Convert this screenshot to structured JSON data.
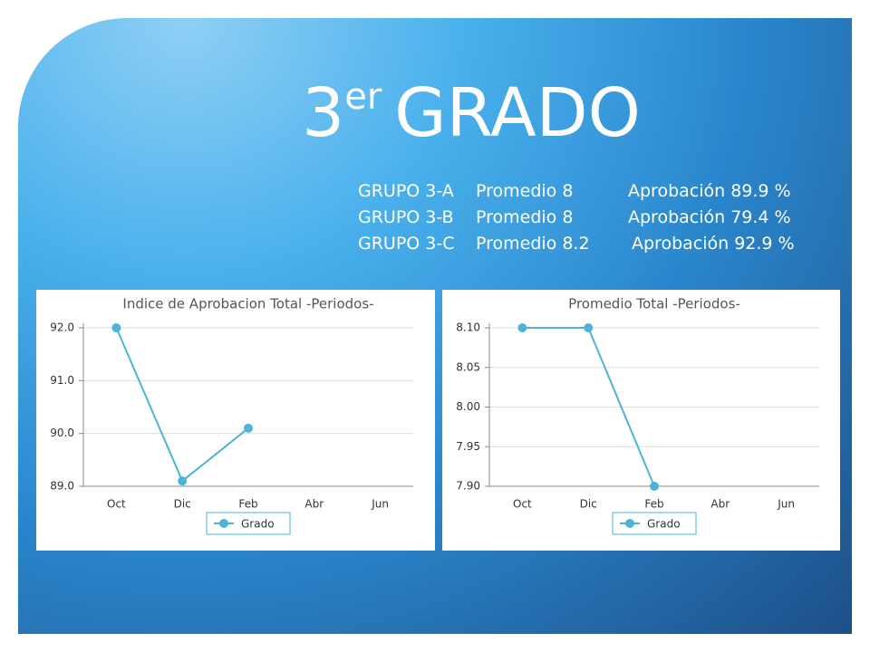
{
  "slide": {
    "title": {
      "number": "3",
      "suffix": "er",
      "text": "GRADO"
    },
    "groups": [
      {
        "group": "GRUPO 3-A",
        "average": "Promedio 8",
        "approval": "Aprobación 89.9 %"
      },
      {
        "group": "GRUPO 3-B",
        "average": "Promedio 8",
        "approval": "Aprobación 79.4 %"
      },
      {
        "group": "GRUPO 3-C",
        "average": "Promedio 8.2",
        "approval": "Aprobación 92.9 %"
      }
    ]
  },
  "chart_data": [
    {
      "type": "line",
      "title": "Indice de Aprobacion Total -Periodos-",
      "categories": [
        "Oct",
        "Dic",
        "Feb",
        "Abr",
        "Jun"
      ],
      "series": [
        {
          "name": "Grado",
          "color": "#4db3d9",
          "values": [
            92.0,
            89.1,
            90.1,
            null,
            null
          ]
        }
      ],
      "ylim": [
        89,
        92
      ],
      "yticks": [
        {
          "value": 89,
          "label": "89.0"
        },
        {
          "value": 90,
          "label": "90.0"
        },
        {
          "value": 91,
          "label": "91.0"
        },
        {
          "value": 92,
          "label": "92.0"
        }
      ],
      "grid": true,
      "legend": "bottom"
    },
    {
      "type": "line",
      "title": "Promedio Total -Periodos-",
      "categories": [
        "Oct",
        "Dic",
        "Feb",
        "Abr",
        "Jun"
      ],
      "series": [
        {
          "name": "Grado",
          "color": "#4db3d9",
          "values": [
            8.1,
            8.1,
            7.9,
            null,
            null
          ]
        }
      ],
      "ylim": [
        7.9,
        8.1
      ],
      "yticks": [
        {
          "value": 7.9,
          "label": "7.90"
        },
        7.95,
        {
          "value": 8.0,
          "label": "8.00"
        },
        8.05,
        {
          "value": 8.1,
          "label": "8.10"
        }
      ],
      "grid": true,
      "legend": "bottom"
    }
  ]
}
